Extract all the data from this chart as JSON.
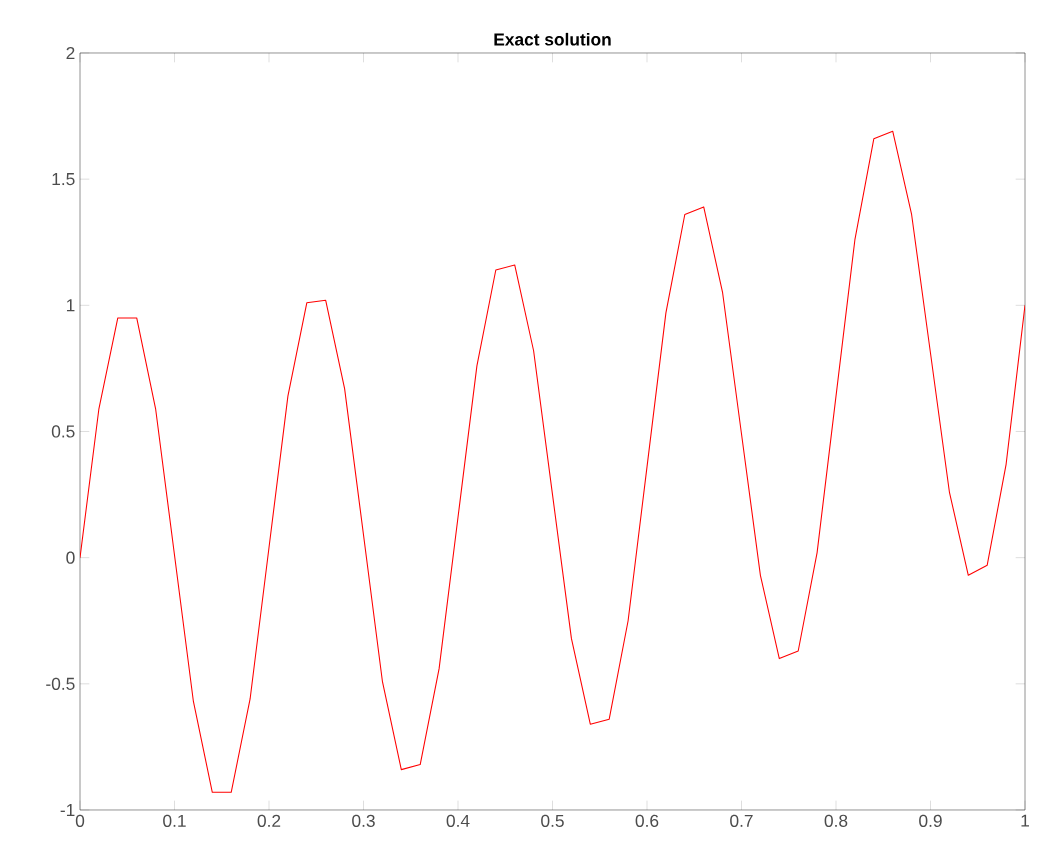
{
  "chart_data": {
    "type": "line",
    "title": "Exact solution",
    "x": [
      0,
      0.02,
      0.04,
      0.06,
      0.08,
      0.1,
      0.12,
      0.14,
      0.16,
      0.18,
      0.2,
      0.22,
      0.24,
      0.26,
      0.28,
      0.3,
      0.32,
      0.34,
      0.36,
      0.38,
      0.4,
      0.42,
      0.44,
      0.46,
      0.48,
      0.5,
      0.52,
      0.54,
      0.56,
      0.58,
      0.6,
      0.62,
      0.64,
      0.66,
      0.68,
      0.7,
      0.72,
      0.74,
      0.76,
      0.78,
      0.8,
      0.82,
      0.84,
      0.86,
      0.88,
      0.9,
      0.92,
      0.94,
      0.96,
      0.98,
      1
    ],
    "values": [
      0,
      0.59,
      0.95,
      0.95,
      0.59,
      0.01,
      -0.57,
      -0.93,
      -0.93,
      -0.56,
      0.04,
      0.64,
      1.01,
      1.02,
      0.67,
      0.09,
      -0.49,
      -0.84,
      -0.82,
      -0.44,
      0.16,
      0.76,
      1.14,
      1.16,
      0.82,
      0.25,
      -0.32,
      -0.66,
      -0.64,
      -0.25,
      0.36,
      0.97,
      1.36,
      1.39,
      1.05,
      0.49,
      -0.07,
      -0.4,
      -0.37,
      0.02,
      0.64,
      1.26,
      1.66,
      1.69,
      1.36,
      0.81,
      0.26,
      -0.07,
      -0.03,
      0.37,
      1
    ],
    "color": "#ff0000",
    "xlim": [
      0,
      1
    ],
    "ylim": [
      -1,
      2
    ],
    "xticks": [
      0,
      0.1,
      0.2,
      0.3,
      0.4,
      0.5,
      0.6,
      0.7,
      0.8,
      0.9,
      1
    ],
    "yticks": [
      -1,
      -0.5,
      0,
      0.5,
      1,
      1.5,
      2
    ]
  }
}
